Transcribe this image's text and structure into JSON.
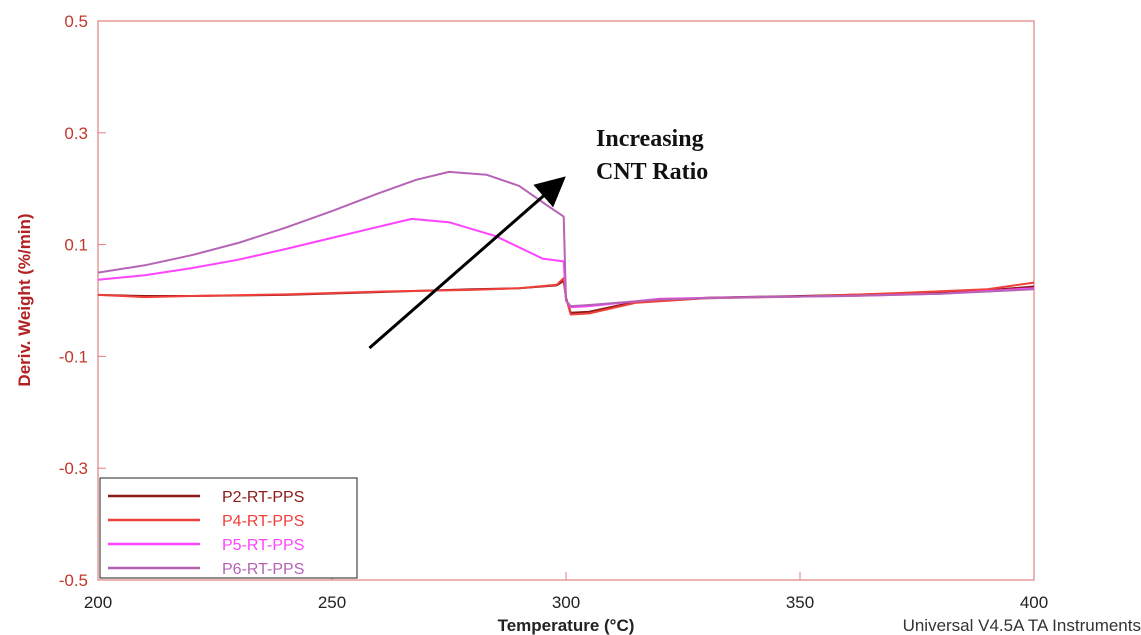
{
  "chart_data": {
    "type": "line",
    "xlabel": "Temperature (°C)",
    "ylabel": "Deriv. Weight (%/min)",
    "xlim": [
      200,
      400
    ],
    "ylim": [
      -0.5,
      0.5
    ],
    "xticks": [
      "200",
      "250",
      "300",
      "350",
      "400"
    ],
    "yticks": [
      "0.5",
      "0.3",
      "0.1",
      "-0.1",
      "-0.3",
      "-0.5"
    ],
    "xtick_values": [
      200,
      250,
      300,
      350,
      400
    ],
    "ytick_values": [
      0.5,
      0.3,
      0.1,
      -0.1,
      -0.3,
      -0.5
    ],
    "grid": false,
    "legend_position": "bottom-left",
    "footer": "Universal V4.5A TA Instruments",
    "annotation": {
      "lines": [
        "Increasing",
        "CNT Ratio"
      ],
      "arrow_from": [
        258,
        -0.085
      ],
      "arrow_to": [
        299,
        0.215
      ]
    },
    "series": [
      {
        "name": "P2-RT-PPS",
        "color": "#8b1a1a",
        "x": [
          200,
          210,
          220,
          240,
          260,
          280,
          290,
          298,
          299.5,
          300,
          301,
          305,
          315,
          330,
          350,
          370,
          390,
          400
        ],
        "y": [
          0.01,
          0.008,
          0.008,
          0.01,
          0.015,
          0.02,
          0.022,
          0.027,
          0.035,
          0.005,
          -0.022,
          -0.02,
          -0.002,
          0.005,
          0.008,
          0.012,
          0.018,
          0.025
        ]
      },
      {
        "name": "P4-RT-PPS",
        "color": "#f0403a",
        "x": [
          200,
          210,
          220,
          240,
          260,
          280,
          290,
          298,
          299.5,
          300,
          301,
          305,
          315,
          330,
          350,
          370,
          390,
          400
        ],
        "y": [
          0.01,
          0.006,
          0.008,
          0.011,
          0.016,
          0.019,
          0.022,
          0.028,
          0.04,
          0.005,
          -0.025,
          -0.023,
          -0.004,
          0.004,
          0.007,
          0.013,
          0.02,
          0.032
        ]
      },
      {
        "name": "P5-RT-PPS",
        "color": "#ff44ff",
        "x": [
          200,
          210,
          220,
          230,
          240,
          250,
          260,
          267,
          275,
          285,
          295,
          299.5,
          300,
          301,
          305,
          320,
          340,
          360,
          380,
          400
        ],
        "y": [
          0.037,
          0.045,
          0.058,
          0.073,
          0.092,
          0.112,
          0.132,
          0.146,
          0.14,
          0.115,
          0.075,
          0.07,
          0.0,
          -0.012,
          -0.01,
          0.003,
          0.006,
          0.008,
          0.012,
          0.022
        ]
      },
      {
        "name": "P6-RT-PPS",
        "color": "#b564b5",
        "x": [
          200,
          210,
          220,
          230,
          240,
          250,
          260,
          268,
          275,
          283,
          290,
          296,
          299.5,
          300,
          301,
          305,
          320,
          340,
          360,
          380,
          400
        ],
        "y": [
          0.05,
          0.063,
          0.081,
          0.103,
          0.13,
          0.16,
          0.192,
          0.216,
          0.23,
          0.225,
          0.205,
          0.17,
          0.15,
          0.0,
          -0.01,
          -0.008,
          0.002,
          0.006,
          0.008,
          0.012,
          0.02
        ]
      }
    ]
  }
}
